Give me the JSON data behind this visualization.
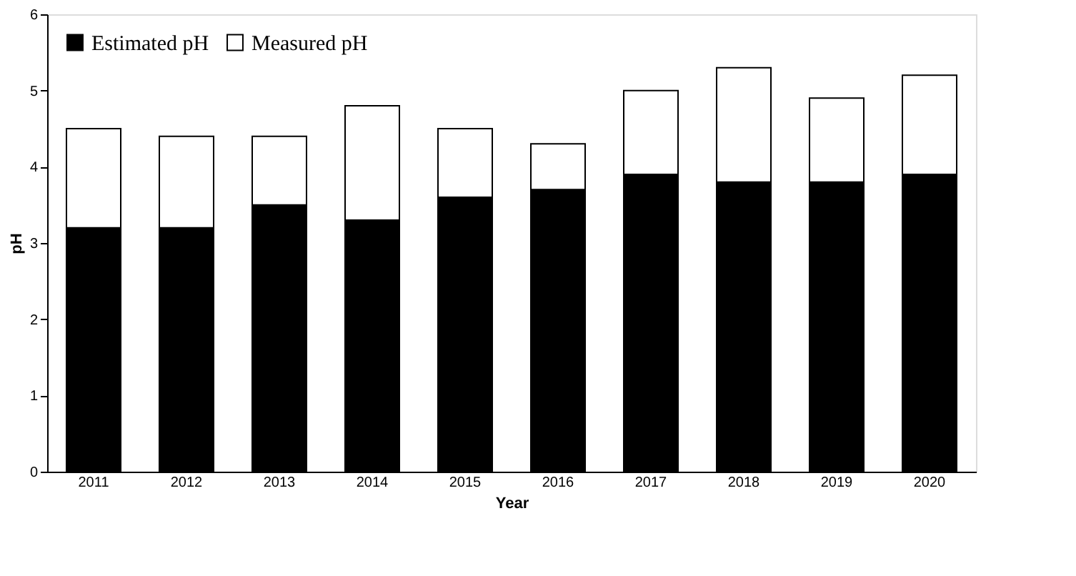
{
  "chart_data": {
    "type": "bar",
    "stacked": true,
    "xlabel": "Year",
    "ylabel": "pH",
    "categories": [
      "2011",
      "2012",
      "2013",
      "2014",
      "2015",
      "2016",
      "2017",
      "2018",
      "2019",
      "2020"
    ],
    "series": [
      {
        "name": "Estimated pH",
        "color": "#000000",
        "values": [
          3.2,
          3.2,
          3.5,
          3.3,
          3.6,
          3.7,
          3.9,
          3.8,
          3.8,
          3.9
        ]
      },
      {
        "name": "Measured pH",
        "color": "#ffffff",
        "values": [
          1.3,
          1.2,
          0.9,
          1.5,
          0.9,
          0.6,
          1.1,
          1.5,
          1.1,
          1.3
        ]
      }
    ],
    "ylim": [
      0,
      6
    ],
    "yticks": [
      0,
      1,
      2,
      3,
      4,
      5,
      6
    ],
    "grid": false,
    "legend": "top left"
  }
}
